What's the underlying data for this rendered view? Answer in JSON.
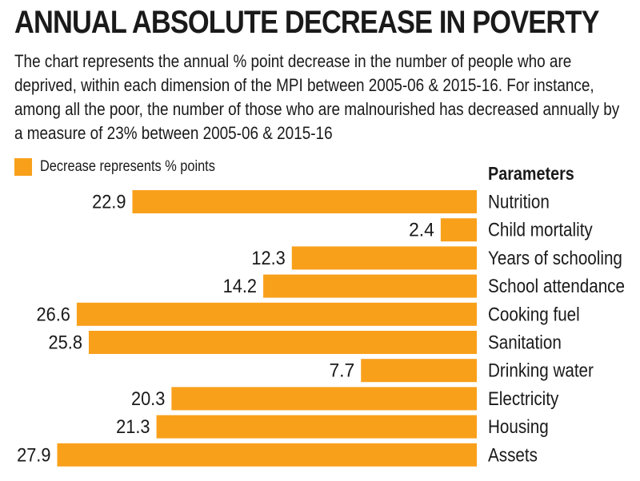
{
  "title": "ANNUAL ABSOLUTE DECREASE IN POVERTY",
  "subtitle": "The chart represents the annual % point decrease in the number of people who are deprived, within each dimension of the MPI between 2005-06 & 2015-16. For instance, among all the poor, the number of those who are malnourished has decreased annually by a measure of 23% between 2005-06 & 2015-16",
  "legend": {
    "label": "Decrease represents % points",
    "color": "#f9a01b"
  },
  "params_heading": "Parameters",
  "chart_data": {
    "type": "bar",
    "orientation": "horizontal",
    "direction": "right-to-left",
    "title": "ANNUAL ABSOLUTE DECREASE IN POVERTY",
    "xlabel": "",
    "ylabel": "Parameters",
    "categories": [
      "Nutrition",
      "Child mortality",
      "Years of schooling",
      "School attendance",
      "Cooking fuel",
      "Sanitation",
      "Drinking water",
      "Electricity",
      "Housing",
      "Assets"
    ],
    "values": [
      22.9,
      2.4,
      12.3,
      14.2,
      26.6,
      25.8,
      7.7,
      20.3,
      21.3,
      27.9
    ],
    "value_labels": [
      "22.9",
      "2.4",
      "12.3",
      "14.2",
      "26.6",
      "25.8",
      "7.7",
      "20.3",
      "21.3",
      "27.9"
    ],
    "series_name": "Decrease represents % points",
    "color": "#f9a01b",
    "grid": false
  }
}
